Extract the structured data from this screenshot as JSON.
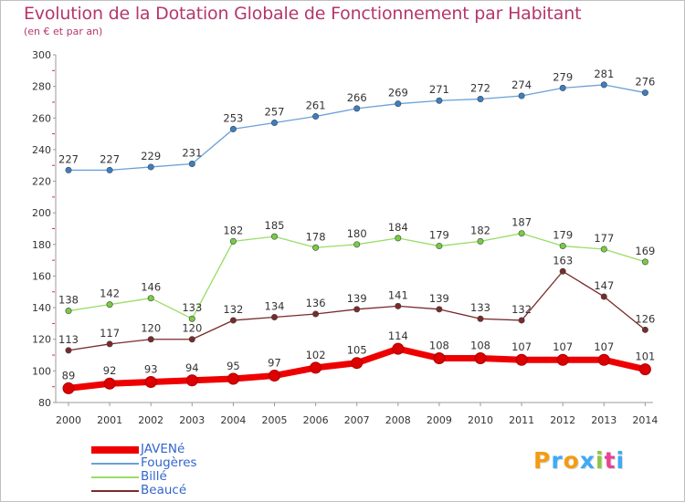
{
  "title": "Evolution de la Dotation Globale de Fonctionnement par Habitant",
  "subtitle": "(en € et par an)",
  "logo": {
    "letters": [
      "P",
      "r",
      "o",
      "x",
      "i",
      "t",
      "i"
    ],
    "colors": [
      "#f39c12",
      "#3fa9f5",
      "#f39c12",
      "#3fa9f5",
      "#8cc63f",
      "#e84393",
      "#3fa9f5"
    ]
  },
  "chart_data": {
    "type": "line",
    "title": "Evolution de la Dotation Globale de Fonctionnement par Habitant",
    "subtitle": "(en € et par an)",
    "xlabel": "",
    "ylabel": "",
    "ylim": [
      80,
      300
    ],
    "ytick_step": 20,
    "grid": false,
    "legend_position": "bottom-left",
    "categories": [
      "2000",
      "2001",
      "2002",
      "2003",
      "2004",
      "2005",
      "2006",
      "2007",
      "2008",
      "2009",
      "2010",
      "2011",
      "2012",
      "2013",
      "2014"
    ],
    "series": [
      {
        "name": "JAVENé",
        "color": "#ee0000",
        "marker": "#dd0000",
        "thick": true,
        "values": [
          89,
          92,
          93,
          94,
          95,
          97,
          102,
          105,
          114,
          108,
          108,
          107,
          107,
          107,
          101
        ]
      },
      {
        "name": "Fougères",
        "color": "#6aa0d8",
        "marker": "#3a7fc4",
        "thick": false,
        "values": [
          227,
          227,
          229,
          231,
          253,
          257,
          261,
          266,
          269,
          271,
          272,
          274,
          279,
          281,
          276
        ]
      },
      {
        "name": "Billé",
        "color": "#99dd66",
        "marker": "#77cc44",
        "thick": false,
        "values": [
          138,
          142,
          146,
          133,
          182,
          185,
          178,
          180,
          184,
          179,
          182,
          187,
          179,
          177,
          169
        ]
      },
      {
        "name": "Beaucé",
        "color": "#7a2a2a",
        "marker": "#7a2a2a",
        "thick": false,
        "values": [
          113,
          117,
          120,
          120,
          132,
          134,
          136,
          139,
          141,
          139,
          133,
          132,
          163,
          147,
          126
        ]
      }
    ]
  }
}
